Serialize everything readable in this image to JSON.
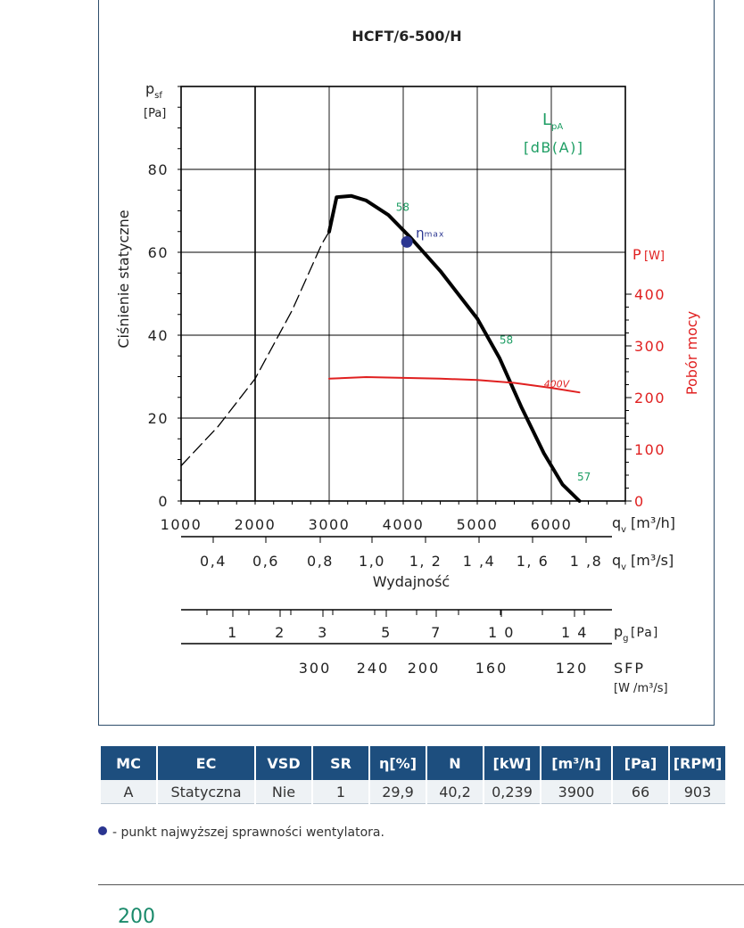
{
  "chart_data": {
    "type": "line",
    "title": "HCFT/6-500/H",
    "ylabel": "Ciśnienie statyczne",
    "y_unit_symbol": "p",
    "y_unit_sub": "sf",
    "y_unit": "[Pa]",
    "ylim": [
      0,
      100
    ],
    "yticks": [
      "0",
      "20",
      "40",
      "60",
      "80"
    ],
    "y2label": "Pobór mocy",
    "y2_unit_symbol": "P",
    "y2_unit": "[W]",
    "y2lim": [
      0,
      400
    ],
    "y2ticks": [
      "0",
      "100",
      "200",
      "300",
      "400"
    ],
    "xlim": [
      1000,
      7000
    ],
    "xticks": [
      "1000",
      "2000",
      "3000",
      "4000",
      "5000",
      "6000"
    ],
    "x_unit_symbol": "q",
    "x_unit_sub": "v",
    "x_unit": "[m³/h]",
    "x2ticks": [
      "0,4",
      "0,6",
      "0,8",
      "1,0",
      "1, 2",
      "1 ,4",
      "1, 6",
      "1 ,8"
    ],
    "x2_unit": "[m³/s]",
    "xlabel": "Wydajność",
    "pg_ticks": [
      "1",
      "2",
      "3",
      "5",
      "7",
      "1 0",
      "1 4"
    ],
    "pg_unit_symbol": "p",
    "pg_unit_sub": "g",
    "pg_unit": "[Pa]",
    "sfp_ticks": [
      "300",
      "240",
      "200",
      "160",
      "120"
    ],
    "sfp_label": "SFP",
    "sfp_unit": "[W /m³/s]",
    "noise_label": "L",
    "noise_sub": "pA",
    "noise_unit": "[dB(A)]",
    "noise_points": [
      {
        "x": 3900,
        "y": 70,
        "label": "58"
      },
      {
        "x": 5300,
        "y": 38,
        "label": "58"
      },
      {
        "x": 6350,
        "y": 5,
        "label": "57"
      }
    ],
    "eta_label": "η",
    "eta_sub": "max",
    "eta_point": {
      "x": 4050,
      "y": 62.5
    },
    "power_curve_label": "400V",
    "series": [
      {
        "name": "unstable",
        "style": "dashed",
        "color": "#000000",
        "points": [
          [
            1000,
            8.5
          ],
          [
            1500,
            18
          ],
          [
            2000,
            29.5
          ],
          [
            2500,
            46
          ],
          [
            2900,
            62
          ],
          [
            3000,
            65
          ]
        ]
      },
      {
        "name": "pressure",
        "style": "solid",
        "color": "#000000",
        "points": [
          [
            3000,
            65
          ],
          [
            3100,
            73.3
          ],
          [
            3300,
            73.6
          ],
          [
            3500,
            72.5
          ],
          [
            3800,
            69
          ],
          [
            4100,
            63.5
          ],
          [
            4500,
            55.5
          ],
          [
            5000,
            44
          ],
          [
            5300,
            34.5
          ],
          [
            5600,
            22.5
          ],
          [
            5900,
            11.5
          ],
          [
            6150,
            4
          ],
          [
            6380,
            0
          ]
        ]
      },
      {
        "name": "power",
        "style": "solid",
        "color": "#e02020",
        "points": [
          [
            3000,
            29.5
          ],
          [
            3500,
            29.9
          ],
          [
            4000,
            29.7
          ],
          [
            4500,
            29.5
          ],
          [
            5000,
            29.2
          ],
          [
            5500,
            28.5
          ],
          [
            6000,
            27.3
          ],
          [
            6380,
            26.2
          ]
        ]
      }
    ]
  },
  "table": {
    "headers": [
      "MC",
      "EC",
      "VSD",
      "SR",
      "η[%]",
      "N",
      "[kW]",
      "[m³/h]",
      "[Pa]",
      "[RPM]"
    ],
    "row": [
      "A",
      "Statyczna",
      "Nie",
      "1",
      "29,9",
      "40,2",
      "0,239",
      "3900",
      "66",
      "903"
    ]
  },
  "legend_note": "- punkt najwyższej sprawności wentylatora.",
  "page_number": "200",
  "colors": {
    "pressure": "#000000",
    "power": "#e02020",
    "noise": "#1e9e64",
    "eta": "#2a3590",
    "table_header": "#1d4e7e",
    "page_number": "#1a8a6b"
  }
}
